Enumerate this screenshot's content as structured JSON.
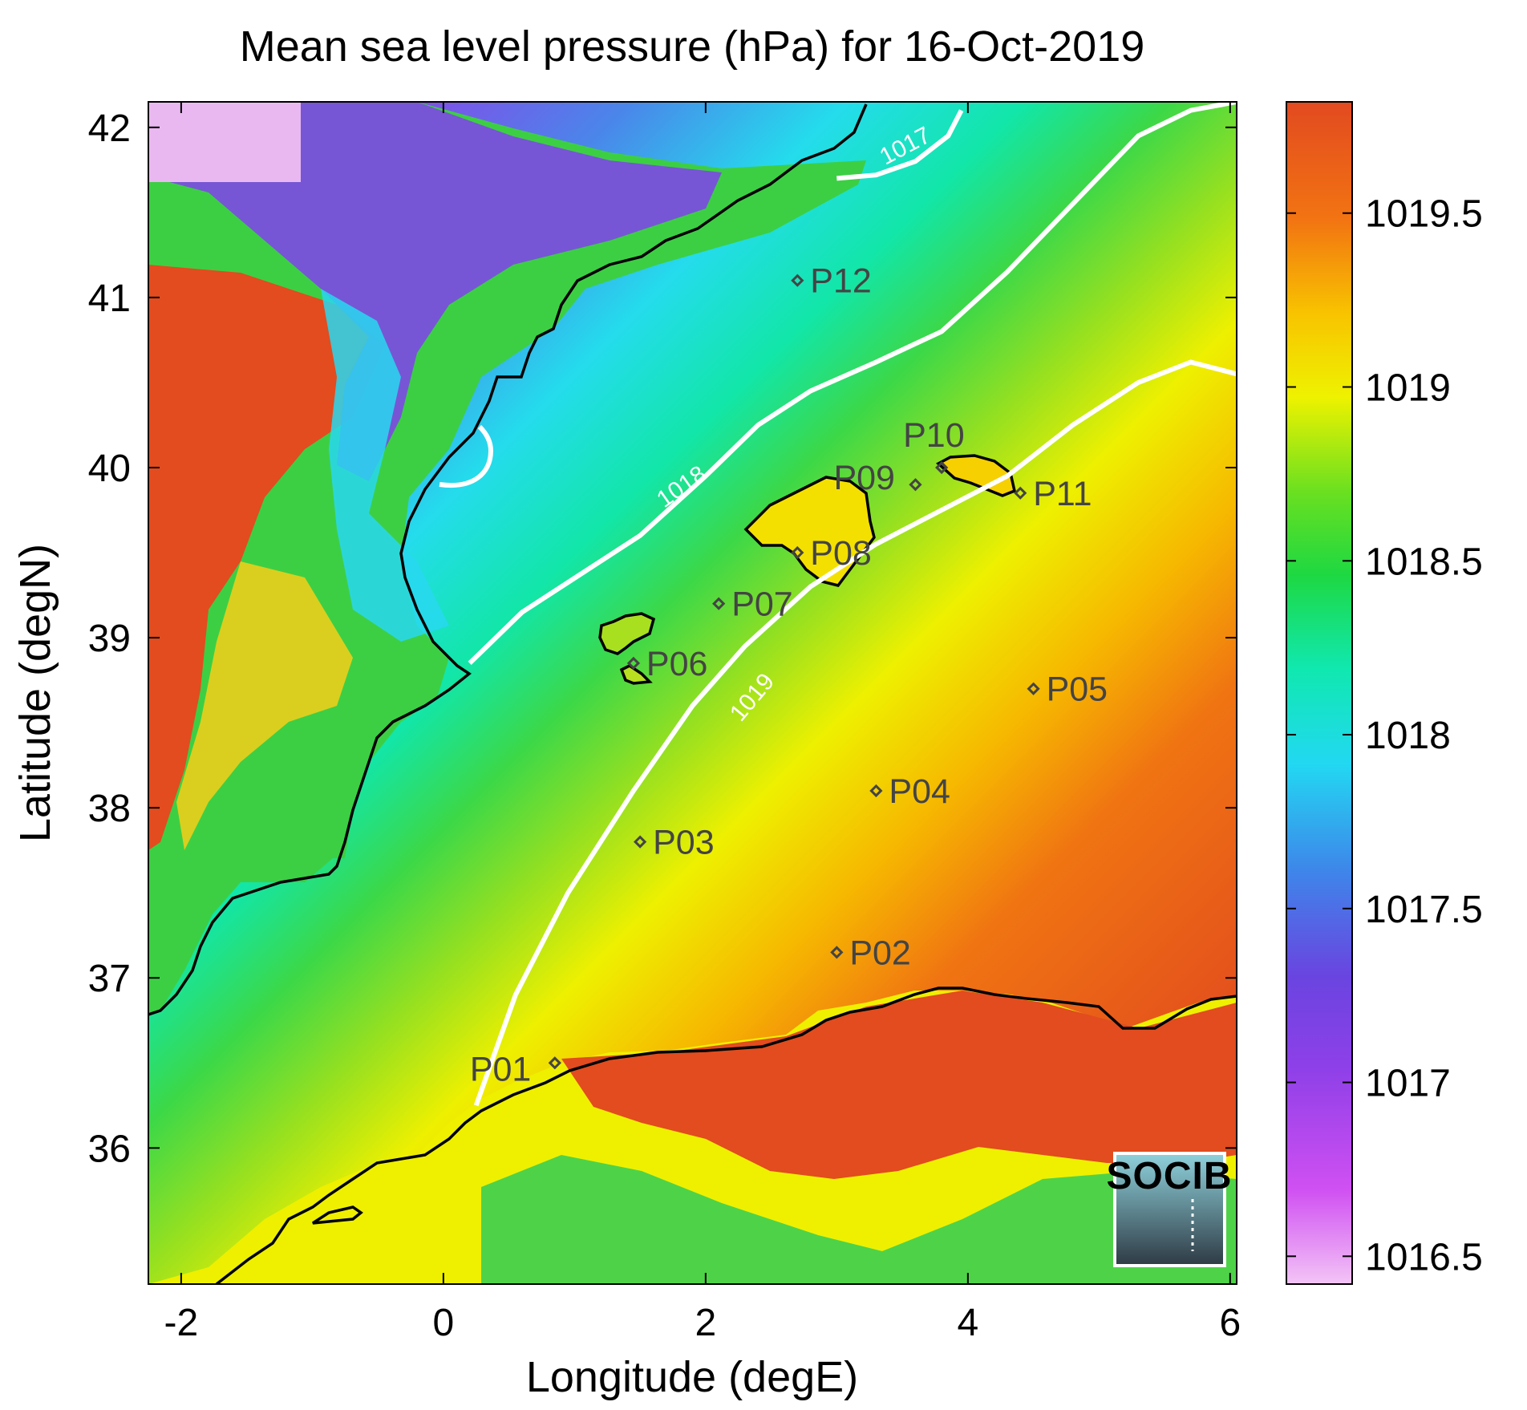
{
  "title": "Mean sea level pressure (hPa) for 16-Oct-2019",
  "xlabel": "Longitude (degE)",
  "ylabel": "Latitude (degN)",
  "x_axis": {
    "range": [
      -2.25,
      6.05
    ],
    "ticks": [
      -2,
      0,
      2,
      4,
      6
    ],
    "tick_labels": [
      "-2",
      "0",
      "2",
      "4",
      "6"
    ]
  },
  "y_axis": {
    "range": [
      35.2,
      42.15
    ],
    "ticks": [
      36,
      37,
      38,
      39,
      40,
      41,
      42
    ],
    "tick_labels": [
      "36",
      "37",
      "38",
      "39",
      "40",
      "41",
      "42"
    ]
  },
  "colorbar": {
    "range": [
      1016.42,
      1019.82
    ],
    "ticks": [
      1016.5,
      1017,
      1017.5,
      1018,
      1018.5,
      1019,
      1019.5
    ],
    "tick_labels": [
      "1016.5",
      "1017",
      "1017.5",
      "1018",
      "1018.5",
      "1019",
      "1019.5"
    ],
    "colormap": [
      "#f0b8f4",
      "#cf48f0",
      "#7040e0",
      "#4080e8",
      "#20d8f0",
      "#10e8a0",
      "#20d840",
      "#70e020",
      "#f0f000",
      "#f8c000",
      "#f07010",
      "#e04820"
    ]
  },
  "stations": [
    {
      "id": "P01",
      "lon": 0.85,
      "lat": 36.5
    },
    {
      "id": "P02",
      "lon": 3.0,
      "lat": 37.15
    },
    {
      "id": "P03",
      "lon": 1.5,
      "lat": 37.8
    },
    {
      "id": "P04",
      "lon": 3.3,
      "lat": 38.1
    },
    {
      "id": "P05",
      "lon": 4.5,
      "lat": 38.7
    },
    {
      "id": "P06",
      "lon": 1.45,
      "lat": 38.85
    },
    {
      "id": "P07",
      "lon": 2.1,
      "lat": 39.2
    },
    {
      "id": "P08",
      "lon": 2.7,
      "lat": 39.5
    },
    {
      "id": "P09",
      "lon": 3.6,
      "lat": 39.9
    },
    {
      "id": "P10",
      "lon": 3.8,
      "lat": 40.0
    },
    {
      "id": "P11",
      "lon": 4.4,
      "lat": 39.85
    },
    {
      "id": "P12",
      "lon": 2.7,
      "lat": 41.1
    }
  ],
  "contours": [
    {
      "level": "1017",
      "label": "1017"
    },
    {
      "level": "1018",
      "label": "1018"
    },
    {
      "level": "1019",
      "label": "1019"
    }
  ],
  "logo": {
    "text": "SOCIB"
  },
  "chart_data": {
    "type": "heatmap",
    "title": "Mean sea level pressure (hPa) for 16-Oct-2019",
    "xlabel": "Longitude (degE)",
    "ylabel": "Latitude (degN)",
    "xlim": [
      -2.25,
      6.05
    ],
    "ylim": [
      35.2,
      42.15
    ],
    "colorbar_label": "",
    "clim": [
      1016.42,
      1019.82
    ],
    "colorbar_ticks": [
      1016.5,
      1017,
      1017.5,
      1018,
      1018.5,
      1019,
      1019.5
    ],
    "contour_levels": [
      1017,
      1018,
      1019
    ],
    "grid": false,
    "series": [
      {
        "name": "",
        "description_values": "MSLP field; low (~1016.5) in north-west, rising to ~1019.8 in south-east"
      }
    ],
    "stations": [
      "P01",
      "P02",
      "P03",
      "P04",
      "P05",
      "P06",
      "P07",
      "P08",
      "P09",
      "P10",
      "P11",
      "P12"
    ]
  }
}
